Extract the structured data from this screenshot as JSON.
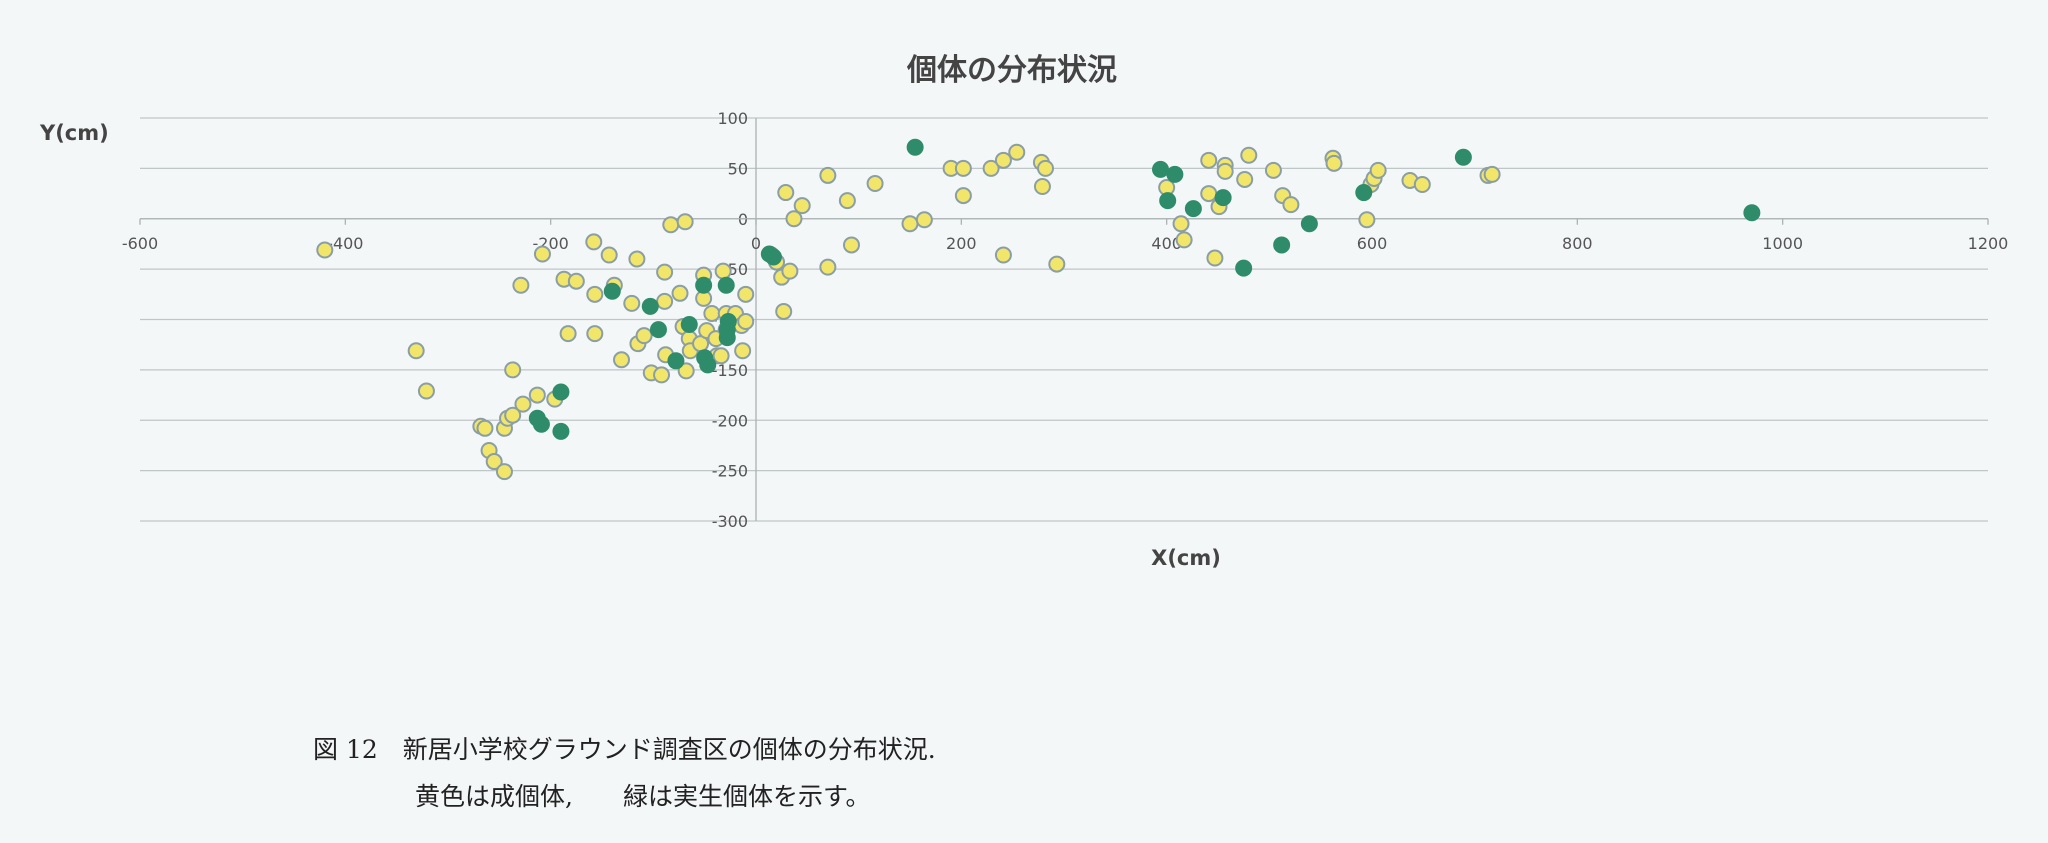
{
  "chart_data": {
    "type": "scatter",
    "title": "個体の分布状況",
    "xlabel": "X(cm)",
    "ylabel": "Y(cm)",
    "xlim": [
      -600,
      1200
    ],
    "ylim": [
      -300,
      100
    ],
    "xticks": [
      -600,
      -400,
      -200,
      0,
      200,
      400,
      600,
      800,
      1000,
      1200
    ],
    "yticks": [
      100,
      50,
      0,
      -50,
      -100,
      -150,
      -200,
      -250,
      -300
    ],
    "grid": "horizontal",
    "series": [
      {
        "name": "成個体",
        "color": "#f2e66a",
        "stroke": "#8a9ea6",
        "points": [
          [
            -420,
            -31
          ],
          [
            -331,
            -131
          ],
          [
            -321,
            -171
          ],
          [
            -268,
            -206
          ],
          [
            -264,
            -208
          ],
          [
            -260,
            -230
          ],
          [
            -255,
            -241
          ],
          [
            -245,
            -251
          ],
          [
            -245,
            -208
          ],
          [
            -242,
            -198
          ],
          [
            -237,
            -195
          ],
          [
            -227,
            -184
          ],
          [
            -213,
            -175
          ],
          [
            -196,
            -179
          ],
          [
            -237,
            -150
          ],
          [
            -229,
            -66
          ],
          [
            -208,
            -35
          ],
          [
            -187,
            -60
          ],
          [
            -175,
            -62
          ],
          [
            -158,
            -23
          ],
          [
            -143,
            -36
          ],
          [
            -138,
            -66
          ],
          [
            -157,
            -75
          ],
          [
            -183,
            -114
          ],
          [
            -157,
            -114
          ],
          [
            -131,
            -140
          ],
          [
            -121,
            -84
          ],
          [
            -116,
            -40
          ],
          [
            -115,
            -124
          ],
          [
            -109,
            -116
          ],
          [
            -102,
            -153
          ],
          [
            -92,
            -155
          ],
          [
            -89,
            -53
          ],
          [
            -89,
            -82
          ],
          [
            -88,
            -135
          ],
          [
            -83,
            -6
          ],
          [
            -74,
            -74
          ],
          [
            -71,
            -107
          ],
          [
            -69,
            -3
          ],
          [
            -65,
            -119
          ],
          [
            -64,
            -131
          ],
          [
            -68,
            -151
          ],
          [
            -54,
            -124
          ],
          [
            -51,
            -56
          ],
          [
            -51,
            -79
          ],
          [
            -48,
            -111
          ],
          [
            -43,
            -94
          ],
          [
            -39,
            -119
          ],
          [
            -38,
            -136
          ],
          [
            -34,
            -136
          ],
          [
            -32,
            -52
          ],
          [
            -29,
            -94
          ],
          [
            -29,
            -110
          ],
          [
            -25,
            -105
          ],
          [
            -20,
            -94
          ],
          [
            -14,
            -106
          ],
          [
            -13,
            -131
          ],
          [
            -10,
            -75
          ],
          [
            -10,
            -102
          ],
          [
            15,
            -36
          ],
          [
            20,
            -43
          ],
          [
            25,
            -58
          ],
          [
            27,
            -92
          ],
          [
            29,
            26
          ],
          [
            33,
            -52
          ],
          [
            37,
            0
          ],
          [
            45,
            13
          ],
          [
            70,
            43
          ],
          [
            70,
            -48
          ],
          [
            89,
            18
          ],
          [
            93,
            -26
          ],
          [
            116,
            35
          ],
          [
            150,
            -5
          ],
          [
            164,
            -1
          ],
          [
            190,
            50
          ],
          [
            202,
            50
          ],
          [
            202,
            23
          ],
          [
            229,
            50
          ],
          [
            241,
            58
          ],
          [
            241,
            -36
          ],
          [
            254,
            66
          ],
          [
            278,
            56
          ],
          [
            282,
            50
          ],
          [
            279,
            32
          ],
          [
            293,
            -45
          ],
          [
            400,
            31
          ],
          [
            414,
            -5
          ],
          [
            417,
            -21
          ],
          [
            441,
            58
          ],
          [
            441,
            25
          ],
          [
            447,
            -39
          ],
          [
            451,
            12
          ],
          [
            457,
            53
          ],
          [
            457,
            47
          ],
          [
            476,
            39
          ],
          [
            480,
            63
          ],
          [
            504,
            48
          ],
          [
            513,
            23
          ],
          [
            521,
            14
          ],
          [
            562,
            60
          ],
          [
            563,
            55
          ],
          [
            595,
            -1
          ],
          [
            599,
            34
          ],
          [
            602,
            40
          ],
          [
            606,
            48
          ],
          [
            637,
            38
          ],
          [
            649,
            34
          ],
          [
            713,
            43
          ],
          [
            717,
            44
          ]
        ]
      },
      {
        "name": "実生個体",
        "color": "#2e8c6a",
        "stroke": "#2e8c6a",
        "points": [
          [
            13,
            -35
          ],
          [
            17,
            -38
          ],
          [
            -140,
            -72
          ],
          [
            -103,
            -87
          ],
          [
            -95,
            -110
          ],
          [
            -78,
            -141
          ],
          [
            -65,
            -105
          ],
          [
            -51,
            -66
          ],
          [
            -50,
            -138
          ],
          [
            -47,
            -145
          ],
          [
            -29,
            -66
          ],
          [
            -28,
            -110
          ],
          [
            -28,
            -118
          ],
          [
            -27,
            -102
          ],
          [
            -213,
            -198
          ],
          [
            -209,
            -204
          ],
          [
            -190,
            -172
          ],
          [
            -190,
            -211
          ],
          [
            155,
            71
          ],
          [
            394,
            49
          ],
          [
            401,
            18
          ],
          [
            408,
            44
          ],
          [
            426,
            10
          ],
          [
            455,
            21
          ],
          [
            475,
            -49
          ],
          [
            512,
            -26
          ],
          [
            539,
            -5
          ],
          [
            592,
            26
          ],
          [
            689,
            61
          ],
          [
            970,
            6
          ]
        ]
      }
    ]
  },
  "caption": {
    "line1": "図 12　新居小学校グラウンド調査区の個体の分布状況.",
    "line2": "黄色は成個体,　　緑は実生個体を示す。"
  }
}
